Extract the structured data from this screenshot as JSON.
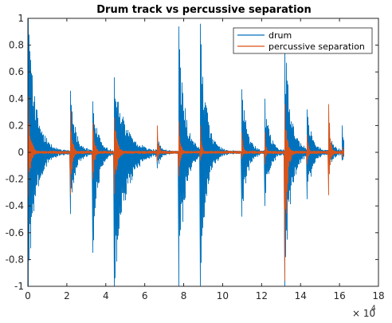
{
  "chart_data": {
    "type": "line",
    "title": "Drum track vs percussive separation",
    "xlabel": "",
    "ylabel": "",
    "xlim": [
      0,
      180000
    ],
    "ylim": [
      -1,
      1
    ],
    "x_tick_values": [
      0,
      20000,
      40000,
      60000,
      80000,
      100000,
      120000,
      140000,
      160000,
      180000
    ],
    "x_tick_labels": [
      "0",
      "2",
      "4",
      "6",
      "8",
      "10",
      "12",
      "14",
      "16",
      "18"
    ],
    "x_exponent_base": "× 10",
    "x_exponent_power": "4",
    "y_tick_values": [
      -1,
      -0.8,
      -0.6,
      -0.4,
      -0.2,
      0,
      0.2,
      0.4,
      0.6,
      0.8,
      1
    ],
    "y_tick_labels": [
      "-1",
      "-0.8",
      "-0.6",
      "-0.4",
      "-0.2",
      "0",
      "0.2",
      "0.4",
      "0.6",
      "0.8",
      "1"
    ],
    "grid": false,
    "legend_position": "top-right",
    "series": [
      {
        "name": "drum",
        "color": "#0072bd",
        "onsets": [
          {
            "x": 200,
            "pos": 1.0,
            "neg": -1.0,
            "decay": 4000
          },
          {
            "x": 22000,
            "pos": 0.46,
            "neg": -0.46,
            "decay": 2500
          },
          {
            "x": 33500,
            "pos": 0.38,
            "neg": -0.75,
            "decay": 2500
          },
          {
            "x": 44500,
            "pos": 0.56,
            "neg": -1.0,
            "decay": 5500
          },
          {
            "x": 66500,
            "pos": 0.12,
            "neg": -0.12,
            "decay": 1500
          },
          {
            "x": 77500,
            "pos": 0.94,
            "neg": -1.0,
            "decay": 3000
          },
          {
            "x": 88500,
            "pos": 0.96,
            "neg": -1.0,
            "decay": 3000
          },
          {
            "x": 110000,
            "pos": 0.47,
            "neg": -0.48,
            "decay": 2500
          },
          {
            "x": 121500,
            "pos": 0.4,
            "neg": -0.4,
            "decay": 2500
          },
          {
            "x": 132000,
            "pos": 0.86,
            "neg": -1.0,
            "decay": 3000
          },
          {
            "x": 143500,
            "pos": 0.32,
            "neg": -0.35,
            "decay": 2500
          },
          {
            "x": 154500,
            "pos": 0.15,
            "neg": -0.13,
            "decay": 2000
          },
          {
            "x": 161500,
            "pos": 0.2,
            "neg": -0.06,
            "decay": 1000
          }
        ]
      },
      {
        "name": "percussive separation",
        "color": "#d95319",
        "onsets": [
          {
            "x": 200,
            "pos": 0.42,
            "neg": -0.33,
            "decay": 1200
          },
          {
            "x": 22000,
            "pos": 0.31,
            "neg": -0.31,
            "decay": 900
          },
          {
            "x": 33500,
            "pos": 0.22,
            "neg": -0.2,
            "decay": 900
          },
          {
            "x": 44500,
            "pos": 0.26,
            "neg": -0.31,
            "decay": 1400
          },
          {
            "x": 66500,
            "pos": 0.2,
            "neg": -0.07,
            "decay": 700
          },
          {
            "x": 77500,
            "pos": 0.23,
            "neg": -0.18,
            "decay": 900
          },
          {
            "x": 88500,
            "pos": 0.2,
            "neg": -0.06,
            "decay": 700
          },
          {
            "x": 110000,
            "pos": 0.15,
            "neg": -0.05,
            "decay": 700
          },
          {
            "x": 121500,
            "pos": 0.15,
            "neg": -0.09,
            "decay": 700
          },
          {
            "x": 132000,
            "pos": 0.36,
            "neg": -0.96,
            "decay": 1100
          },
          {
            "x": 143500,
            "pos": 0.13,
            "neg": -0.09,
            "decay": 700
          },
          {
            "x": 154500,
            "pos": 0.36,
            "neg": -0.32,
            "decay": 800
          },
          {
            "x": 161500,
            "pos": 0.04,
            "neg": -0.04,
            "decay": 600
          }
        ]
      }
    ]
  }
}
